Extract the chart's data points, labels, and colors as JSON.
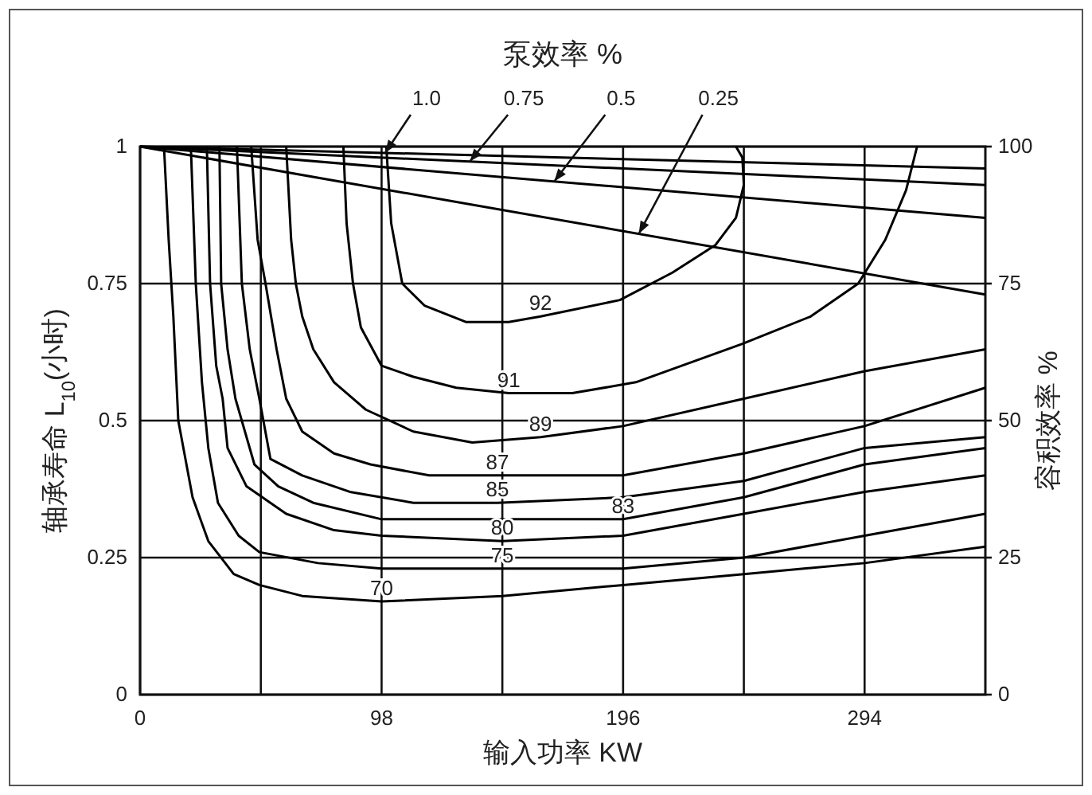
{
  "chart_data": {
    "type": "line",
    "title": "泵效率 %",
    "xlabel": "输入功率 KW",
    "ylabel": "轴承寿命 L$_{10}$(小时)",
    "y2label": "容积效率 %",
    "xlim": [
      0,
      343
    ],
    "ylim": [
      0,
      1
    ],
    "y2lim": [
      0,
      100
    ],
    "xticks": [
      0,
      {
        "value": 49,
        "label": null
      },
      98,
      {
        "value": 147,
        "label": null
      },
      196,
      {
        "value": 245,
        "label": null
      },
      294
    ],
    "yticks": [
      0,
      0.25,
      0.5,
      0.75,
      1
    ],
    "y2ticks": [
      0,
      25,
      50,
      75,
      100
    ],
    "grid": true,
    "series": [
      {
        "color": "#000000",
        "x": [
          9.7,
          11.6,
          13.5,
          15.5,
          21.3,
          27.7,
          38,
          48.4,
          65.8,
          98,
          147,
          196,
          245,
          294,
          343
        ],
        "values": [
          1,
          0.83,
          0.69,
          0.5,
          0.36,
          0.28,
          0.22,
          0.2,
          0.18,
          0.17,
          0.18,
          0.2,
          0.22,
          0.24,
          0.27
        ]
      },
      {
        "color": "#000000",
        "x": [
          20.6,
          22.6,
          25.1,
          27.7,
          31.6,
          40,
          48.4,
          72.2,
          98,
          147,
          196,
          245,
          294,
          343
        ],
        "values": [
          1,
          0.75,
          0.57,
          0.45,
          0.35,
          0.29,
          0.26,
          0.24,
          0.23,
          0.23,
          0.23,
          0.25,
          0.29,
          0.33
        ]
      },
      {
        "color": "#000000",
        "x": [
          27.1,
          28.4,
          30.9,
          33.5,
          35.5,
          43.2,
          59.3,
          78.7,
          98,
          147,
          196,
          245,
          294,
          343
        ],
        "values": [
          1,
          0.75,
          0.6,
          0.54,
          0.45,
          0.38,
          0.33,
          0.3,
          0.29,
          0.28,
          0.29,
          0.33,
          0.37,
          0.4
        ]
      },
      {
        "color": "#000000",
        "x": [
          32.2,
          32.9,
          35.5,
          38.7,
          46.4,
          56.1,
          70.3,
          98,
          145,
          196,
          245,
          294,
          343
        ],
        "values": [
          1,
          0.75,
          0.63,
          0.54,
          0.42,
          0.38,
          0.35,
          0.32,
          0.32,
          0.32,
          0.36,
          0.42,
          0.45
        ]
      },
      {
        "color": "#000000",
        "x": [
          39.3,
          41.3,
          44.5,
          48.4,
          52.9,
          65.8,
          85.1,
          110.9,
          145,
          196,
          245,
          294,
          343
        ],
        "values": [
          1,
          0.75,
          0.63,
          0.54,
          0.43,
          0.4,
          0.37,
          0.35,
          0.35,
          0.36,
          0.39,
          0.45,
          0.47
        ]
      },
      {
        "color": "#000000",
        "x": [
          45.1,
          47.7,
          50.9,
          55.4,
          59.3,
          65.8,
          78.7,
          93.5,
          117.3,
          145,
          196,
          245,
          294,
          343
        ],
        "values": [
          1,
          0.83,
          0.75,
          0.63,
          0.54,
          0.48,
          0.44,
          0.42,
          0.4,
          0.4,
          0.4,
          0.44,
          0.49,
          0.56
        ]
      },
      {
        "color": "#000000",
        "x": [
          59.3,
          61.3,
          63.2,
          65.8,
          70.3,
          78.7,
          91.6,
          110.9,
          134.8,
          162.5,
          196,
          245,
          294,
          343
        ],
        "values": [
          1,
          0.83,
          0.75,
          0.69,
          0.63,
          0.57,
          0.52,
          0.48,
          0.46,
          0.47,
          0.49,
          0.54,
          0.59,
          0.63
        ]
      },
      {
        "color": "#000000",
        "x": [
          82.5,
          83.8,
          86.4,
          89.6,
          98,
          110.9,
          128.3,
          149.6,
          175.4,
          201.2,
          244.4,
          272.1,
          291.4,
          302.4,
          310.8,
          315.3
        ],
        "values": [
          1,
          0.86,
          0.75,
          0.67,
          0.6,
          0.58,
          0.56,
          0.55,
          0.55,
          0.57,
          0.64,
          0.69,
          0.75,
          0.83,
          0.92,
          1
        ]
      },
      {
        "color": "#000000",
        "x": [
          99.9,
          101.9,
          106.4,
          115.4,
          132.2,
          149.6,
          162.5,
          194.7,
          216,
          233.4,
          241.8,
          245,
          244.4,
          241.8
        ],
        "values": [
          1,
          0.86,
          0.75,
          0.71,
          0.68,
          0.68,
          0.69,
          0.72,
          0.77,
          0.82,
          0.87,
          0.93,
          0.98,
          1
        ]
      },
      {
        "name": "1.0",
        "color": "#000000",
        "x": [
          0,
          343
        ],
        "values": [
          1,
          0.96
        ]
      },
      {
        "name": "0.75",
        "color": "#000000",
        "x": [
          0,
          343
        ],
        "values": [
          1,
          0.93
        ]
      },
      {
        "name": "0.5",
        "color": "#000000",
        "x": [
          0,
          343
        ],
        "values": [
          1,
          0.87
        ]
      },
      {
        "name": "0.25",
        "color": "#000000",
        "x": [
          0,
          343
        ],
        "values": [
          1,
          0.73
        ]
      }
    ],
    "annotations": [
      {
        "text": "92",
        "x": 162.5,
        "y": 0.69
      },
      {
        "text": "91",
        "x": 149.6,
        "y": 0.55
      },
      {
        "text": "89",
        "x": 162.5,
        "y": 0.47
      },
      {
        "text": "87",
        "x": 145,
        "y": 0.4
      },
      {
        "text": "85",
        "x": 145,
        "y": 0.35
      },
      {
        "text": "83",
        "x": 196,
        "y": 0.32
      },
      {
        "text": "80",
        "x": 147,
        "y": 0.28
      },
      {
        "text": "75",
        "x": 147,
        "y": 0.23
      },
      {
        "text": "70",
        "x": 98,
        "y": 0.17
      }
    ]
  }
}
